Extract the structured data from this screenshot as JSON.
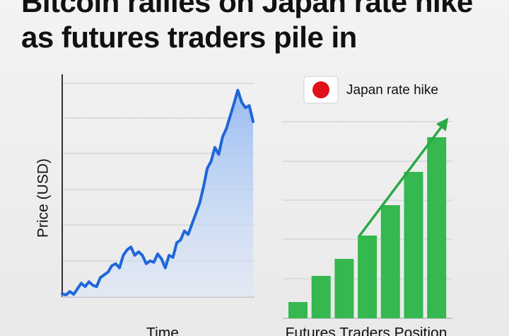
{
  "title": "Bitcoin rallies on Japan rate hike as futures traders pile in",
  "chart_data": [
    {
      "type": "line",
      "ylabel": "Price (USD)",
      "xlabel": "Time",
      "color": "#1f66d9",
      "values": [
        5,
        3,
        8,
        4,
        12,
        20,
        15,
        22,
        17,
        15,
        28,
        32,
        36,
        45,
        48,
        42,
        60,
        68,
        72,
        60,
        65,
        60,
        48,
        52,
        50,
        62,
        55,
        42,
        60,
        57,
        78,
        82,
        95,
        90,
        105,
        120,
        135,
        158,
        185,
        195,
        215,
        205,
        230,
        242,
        260,
        278,
        297,
        280,
        272,
        275,
        252
      ],
      "ylim": [
        0,
        320
      ]
    },
    {
      "type": "bar",
      "xlabel": "Futures Traders Position",
      "color": "#34b84f",
      "values": [
        23,
        60,
        84,
        117,
        160,
        207,
        256
      ],
      "ylim": [
        0,
        290
      ],
      "legend": {
        "label": "Japan rate hike",
        "color": "#e0101a"
      }
    }
  ]
}
